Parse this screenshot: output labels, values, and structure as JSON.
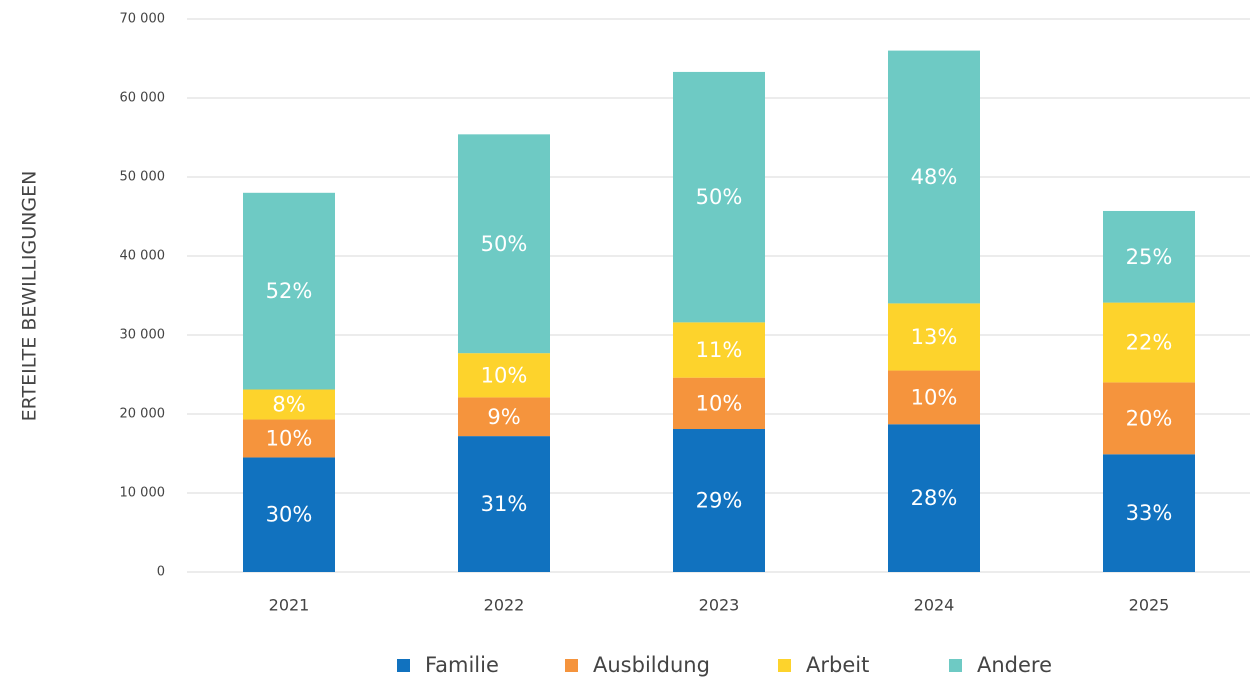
{
  "chart_data": {
    "type": "stacked_bar",
    "y_label": "ERTEILTE BEWILLIGUNGEN",
    "categories": [
      "2021",
      "2022",
      "2023",
      "2024",
      "2025"
    ],
    "series": [
      {
        "name": "Familie",
        "color": "#1172bf",
        "values": [
          14500,
          17200,
          18100,
          18700,
          14900
        ],
        "value_labels": [
          "30%",
          "31%",
          "29%",
          "28%",
          "33%"
        ]
      },
      {
        "name": "Ausbildung",
        "color": "#f5943d",
        "values": [
          4800,
          4900,
          6500,
          6800,
          9100
        ],
        "value_labels": [
          "10%",
          "9%",
          "10%",
          "10%",
          "20%"
        ]
      },
      {
        "name": "Arbeit",
        "color": "#fdd32c",
        "values": [
          3800,
          5600,
          7000,
          8500,
          10100
        ],
        "value_labels": [
          "8%",
          "10%",
          "11%",
          "13%",
          "22%"
        ]
      },
      {
        "name": "Andere",
        "color": "#6ecac4",
        "values": [
          24900,
          27700,
          31700,
          32000,
          11600
        ],
        "value_labels": [
          "52%",
          "50%",
          "50%",
          "48%",
          "25%"
        ]
      }
    ],
    "ylim": [
      0,
      70000
    ],
    "yticks": [
      0,
      {
        "value": 10000,
        "label": "10 000"
      },
      {
        "value": 20000,
        "label": "20 000"
      },
      {
        "value": 30000,
        "label": "30 000"
      },
      {
        "value": 40000,
        "label": "40 000"
      },
      {
        "value": 50000,
        "label": "50 000"
      },
      {
        "value": 60000,
        "label": "60 000"
      },
      {
        "value": 70000,
        "label": "70 000"
      }
    ],
    "grid": true,
    "legend": "bottom"
  }
}
